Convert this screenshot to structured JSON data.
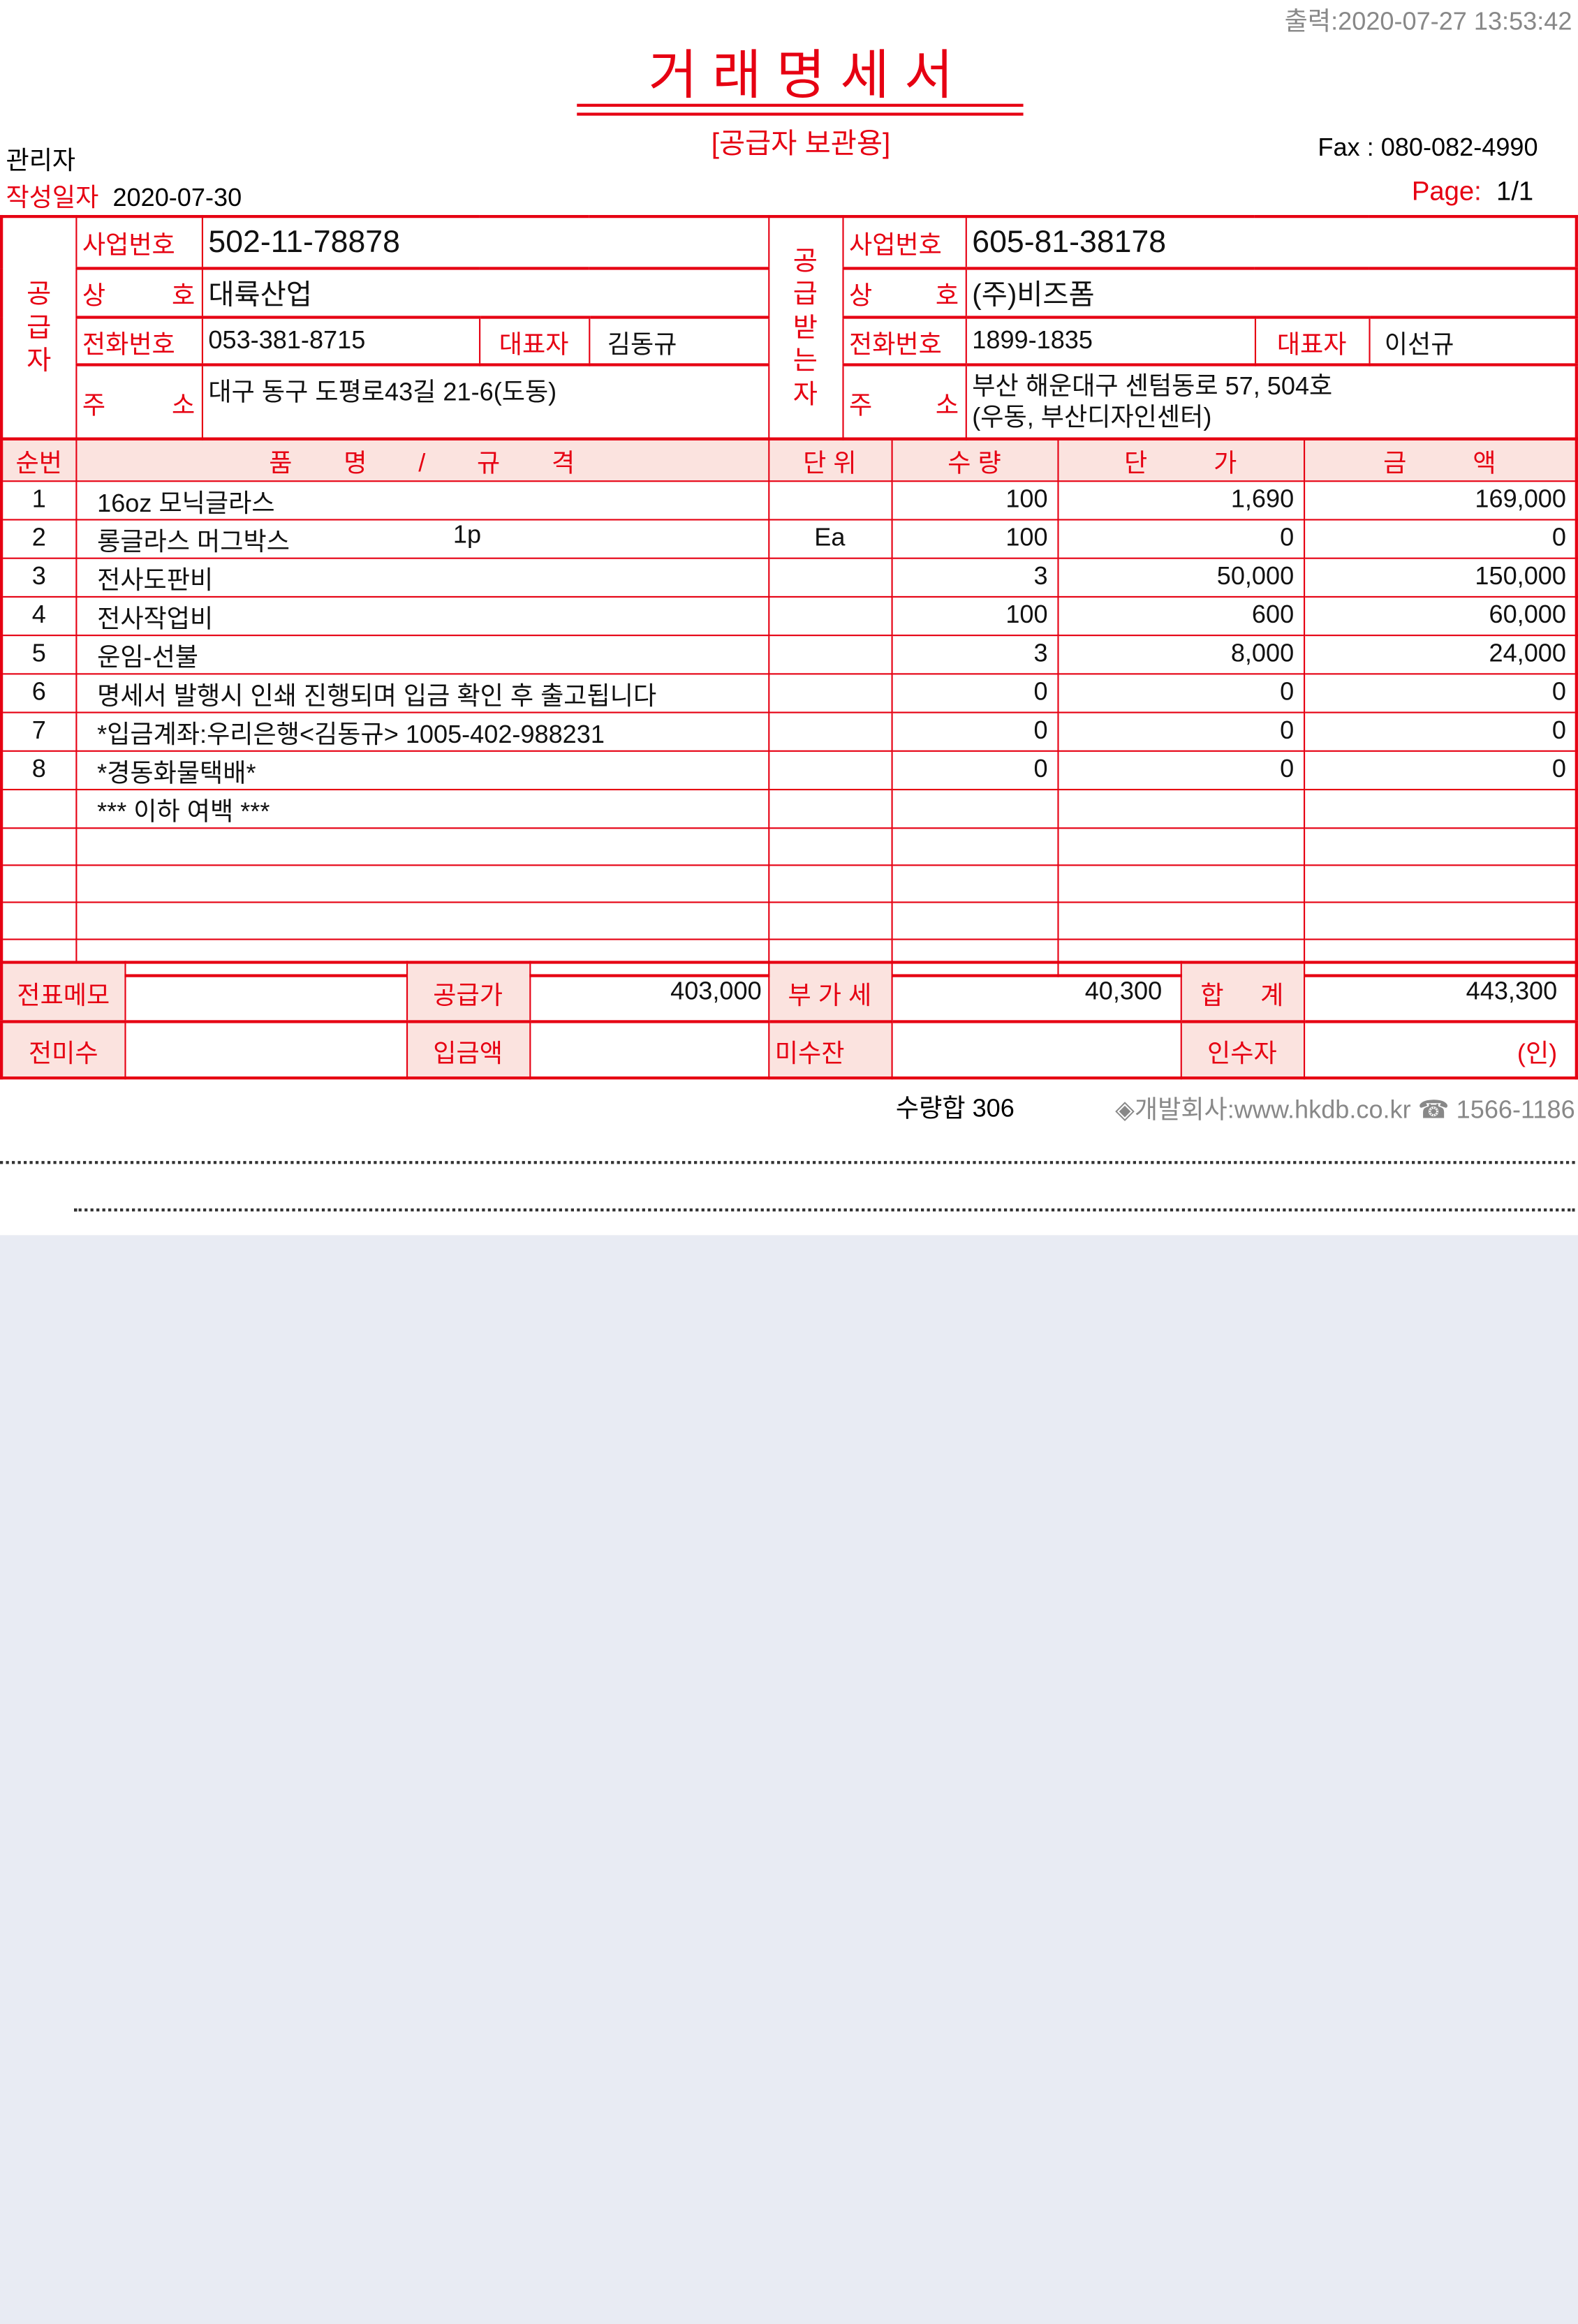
{
  "print_time": "출력:2020-07-27 13:53:42",
  "title": "거 래 명 세 서",
  "subtitle": "[공급자 보관용]",
  "user": "관리자",
  "fax": "Fax : 080-082-4990",
  "date_label": "작성일자",
  "date": "2020-07-30",
  "page_label": "Page:",
  "page": "1/1",
  "supplier": {
    "side_label": "공 급 자",
    "biz_no_label": "사업번호",
    "biz_no": "502-11-78878",
    "name_label": "상 호",
    "name": "대륙산업",
    "phone_label": "전화번호",
    "phone": "053-381-8715",
    "rep_label": "대표자",
    "rep": "김동규",
    "addr_label": "주 소",
    "addr": "대구 동구 도평로43길 21-6(도동)",
    "addr2": ""
  },
  "buyer": {
    "side_label": "공 급 받 는 자",
    "biz_no_label": "사업번호",
    "biz_no": "605-81-38178",
    "name_label": "상 호",
    "name": "(주)비즈폼",
    "phone_label": "전화번호",
    "phone": "1899-1835",
    "rep_label": "대표자",
    "rep": "이선규",
    "addr_label": "주 소",
    "addr": "부산 해운대구 센텀동로 57, 504호",
    "addr2": "(우동, 부산디자인센터)"
  },
  "columns": [
    "순번",
    "품 명 / 규 격",
    "단 위",
    "수 량",
    "단 가",
    "금 액"
  ],
  "items": [
    {
      "no": "1",
      "name": "16oz 모닉글라스",
      "spec": "",
      "unit": "",
      "qty": "100",
      "price": "1,690",
      "amount": "169,000"
    },
    {
      "no": "2",
      "name": "롱글라스 머그박스",
      "spec": "1p",
      "unit": "Ea",
      "qty": "100",
      "price": "0",
      "amount": "0"
    },
    {
      "no": "3",
      "name": "전사도판비",
      "spec": "",
      "unit": "",
      "qty": "3",
      "price": "50,000",
      "amount": "150,000"
    },
    {
      "no": "4",
      "name": "전사작업비",
      "spec": "",
      "unit": "",
      "qty": "100",
      "price": "600",
      "amount": "60,000"
    },
    {
      "no": "5",
      "name": "운임-선불",
      "spec": "",
      "unit": "",
      "qty": "3",
      "price": "8,000",
      "amount": "24,000"
    },
    {
      "no": "6",
      "name": "명세서 발행시 인쇄 진행되며 입금 확인 후 출고됩니다",
      "spec": "",
      "unit": "",
      "qty": "0",
      "price": "0",
      "amount": "0"
    },
    {
      "no": "7",
      "name": "*입금계좌:우리은행<김동규> 1005-402-988231",
      "spec": "",
      "unit": "",
      "qty": "0",
      "price": "0",
      "amount": "0"
    },
    {
      "no": "8",
      "name": "*경동화물택배*",
      "spec": "",
      "unit": "",
      "qty": "0",
      "price": "0",
      "amount": "0"
    },
    {
      "no": "",
      "name": "*** 이하 여백 ***",
      "spec": "",
      "unit": "",
      "qty": "",
      "price": "",
      "amount": ""
    },
    {
      "no": "",
      "name": "",
      "spec": "",
      "unit": "",
      "qty": "",
      "price": "",
      "amount": ""
    },
    {
      "no": "",
      "name": "",
      "spec": "",
      "unit": "",
      "qty": "",
      "price": "",
      "amount": ""
    },
    {
      "no": "",
      "name": "",
      "spec": "",
      "unit": "",
      "qty": "",
      "price": "",
      "amount": ""
    },
    {
      "no": "",
      "name": "",
      "spec": "",
      "unit": "",
      "qty": "",
      "price": "",
      "amount": ""
    }
  ],
  "footer": {
    "memo_label": "전표메모",
    "memo": "",
    "supply_label": "공급가",
    "supply": "403,000",
    "vat_label": "부 가 세",
    "vat": "40,300",
    "total_label": "합 계",
    "total": "443,300",
    "prev_label": "전미수",
    "prev": "",
    "paid_label": "입금액",
    "paid": "",
    "unpaid_label": "미수잔",
    "unpaid": "",
    "receiver_label": "인수자",
    "receiver": "(인)"
  },
  "qty_sum": "수량합 306",
  "developer": "◈개발회사:www.hkdb.co.kr ☎ 1566-1186",
  "colors": {
    "accent": "#e60012",
    "label_bg": "#fbe3df",
    "background": "#e8ebf3"
  }
}
